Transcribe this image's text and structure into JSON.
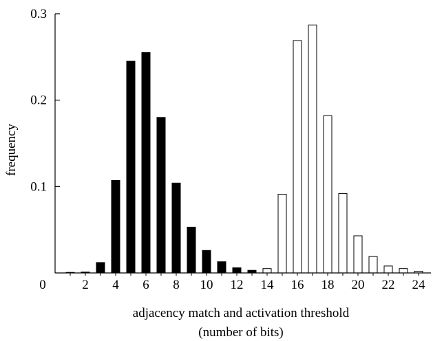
{
  "chart_data": {
    "type": "bar",
    "xlabel": "adjacency match and activation threshold",
    "xlabel_line2": "(number of bits)",
    "ylabel": "frequency",
    "xlim": [
      0,
      25
    ],
    "ylim": [
      0,
      0.3
    ],
    "x_ticks": [
      2,
      4,
      6,
      8,
      10,
      12,
      14,
      16,
      18,
      20,
      22,
      24
    ],
    "x_zero_label": "0",
    "y_ticks": [
      0.1,
      0.2,
      0.3
    ],
    "y_tick_labels": [
      "0.1",
      "0.2",
      "0.3"
    ],
    "grid": false,
    "series": [
      {
        "fill": "black",
        "color": "#000000",
        "x": [
          1,
          2,
          3,
          4,
          5,
          6,
          7,
          8,
          9,
          10,
          11,
          12,
          13,
          14
        ],
        "values": [
          0.0005,
          0.001,
          0.012,
          0.107,
          0.245,
          0.255,
          0.18,
          0.104,
          0.053,
          0.026,
          0.013,
          0.006,
          0.003,
          0.001
        ]
      },
      {
        "fill": "white",
        "color": "#ffffff",
        "x": [
          14,
          15,
          16,
          17,
          18,
          19,
          20,
          21,
          22,
          23,
          24
        ],
        "values": [
          0.005,
          0.091,
          0.269,
          0.287,
          0.182,
          0.092,
          0.043,
          0.019,
          0.008,
          0.005,
          0.002
        ]
      }
    ]
  }
}
